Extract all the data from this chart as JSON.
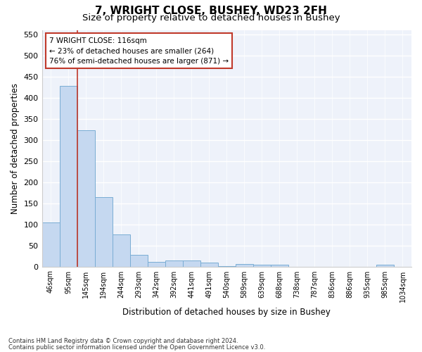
{
  "title": "7, WRIGHT CLOSE, BUSHEY, WD23 2FH",
  "subtitle": "Size of property relative to detached houses in Bushey",
  "xlabel": "Distribution of detached houses by size in Bushey",
  "ylabel": "Number of detached properties",
  "categories": [
    "46sqm",
    "95sqm",
    "145sqm",
    "194sqm",
    "244sqm",
    "293sqm",
    "342sqm",
    "392sqm",
    "441sqm",
    "491sqm",
    "540sqm",
    "589sqm",
    "639sqm",
    "688sqm",
    "738sqm",
    "787sqm",
    "836sqm",
    "886sqm",
    "935sqm",
    "985sqm",
    "1034sqm"
  ],
  "values": [
    105,
    428,
    322,
    164,
    76,
    27,
    11,
    14,
    14,
    10,
    1,
    6,
    5,
    4,
    0,
    0,
    0,
    0,
    0,
    5,
    0
  ],
  "bar_color": "#c5d8f0",
  "bar_edge_color": "#7aadd4",
  "vline_color": "#c0392b",
  "annotation_box_text": "7 WRIGHT CLOSE: 116sqm\n← 23% of detached houses are smaller (264)\n76% of semi-detached houses are larger (871) →",
  "annotation_box_color": "#c0392b",
  "ylim": [
    0,
    560
  ],
  "yticks": [
    0,
    50,
    100,
    150,
    200,
    250,
    300,
    350,
    400,
    450,
    500,
    550
  ],
  "footnote1": "Contains HM Land Registry data © Crown copyright and database right 2024.",
  "footnote2": "Contains public sector information licensed under the Open Government Licence v3.0.",
  "bg_color": "#eef2fa",
  "title_fontsize": 11,
  "subtitle_fontsize": 9.5
}
